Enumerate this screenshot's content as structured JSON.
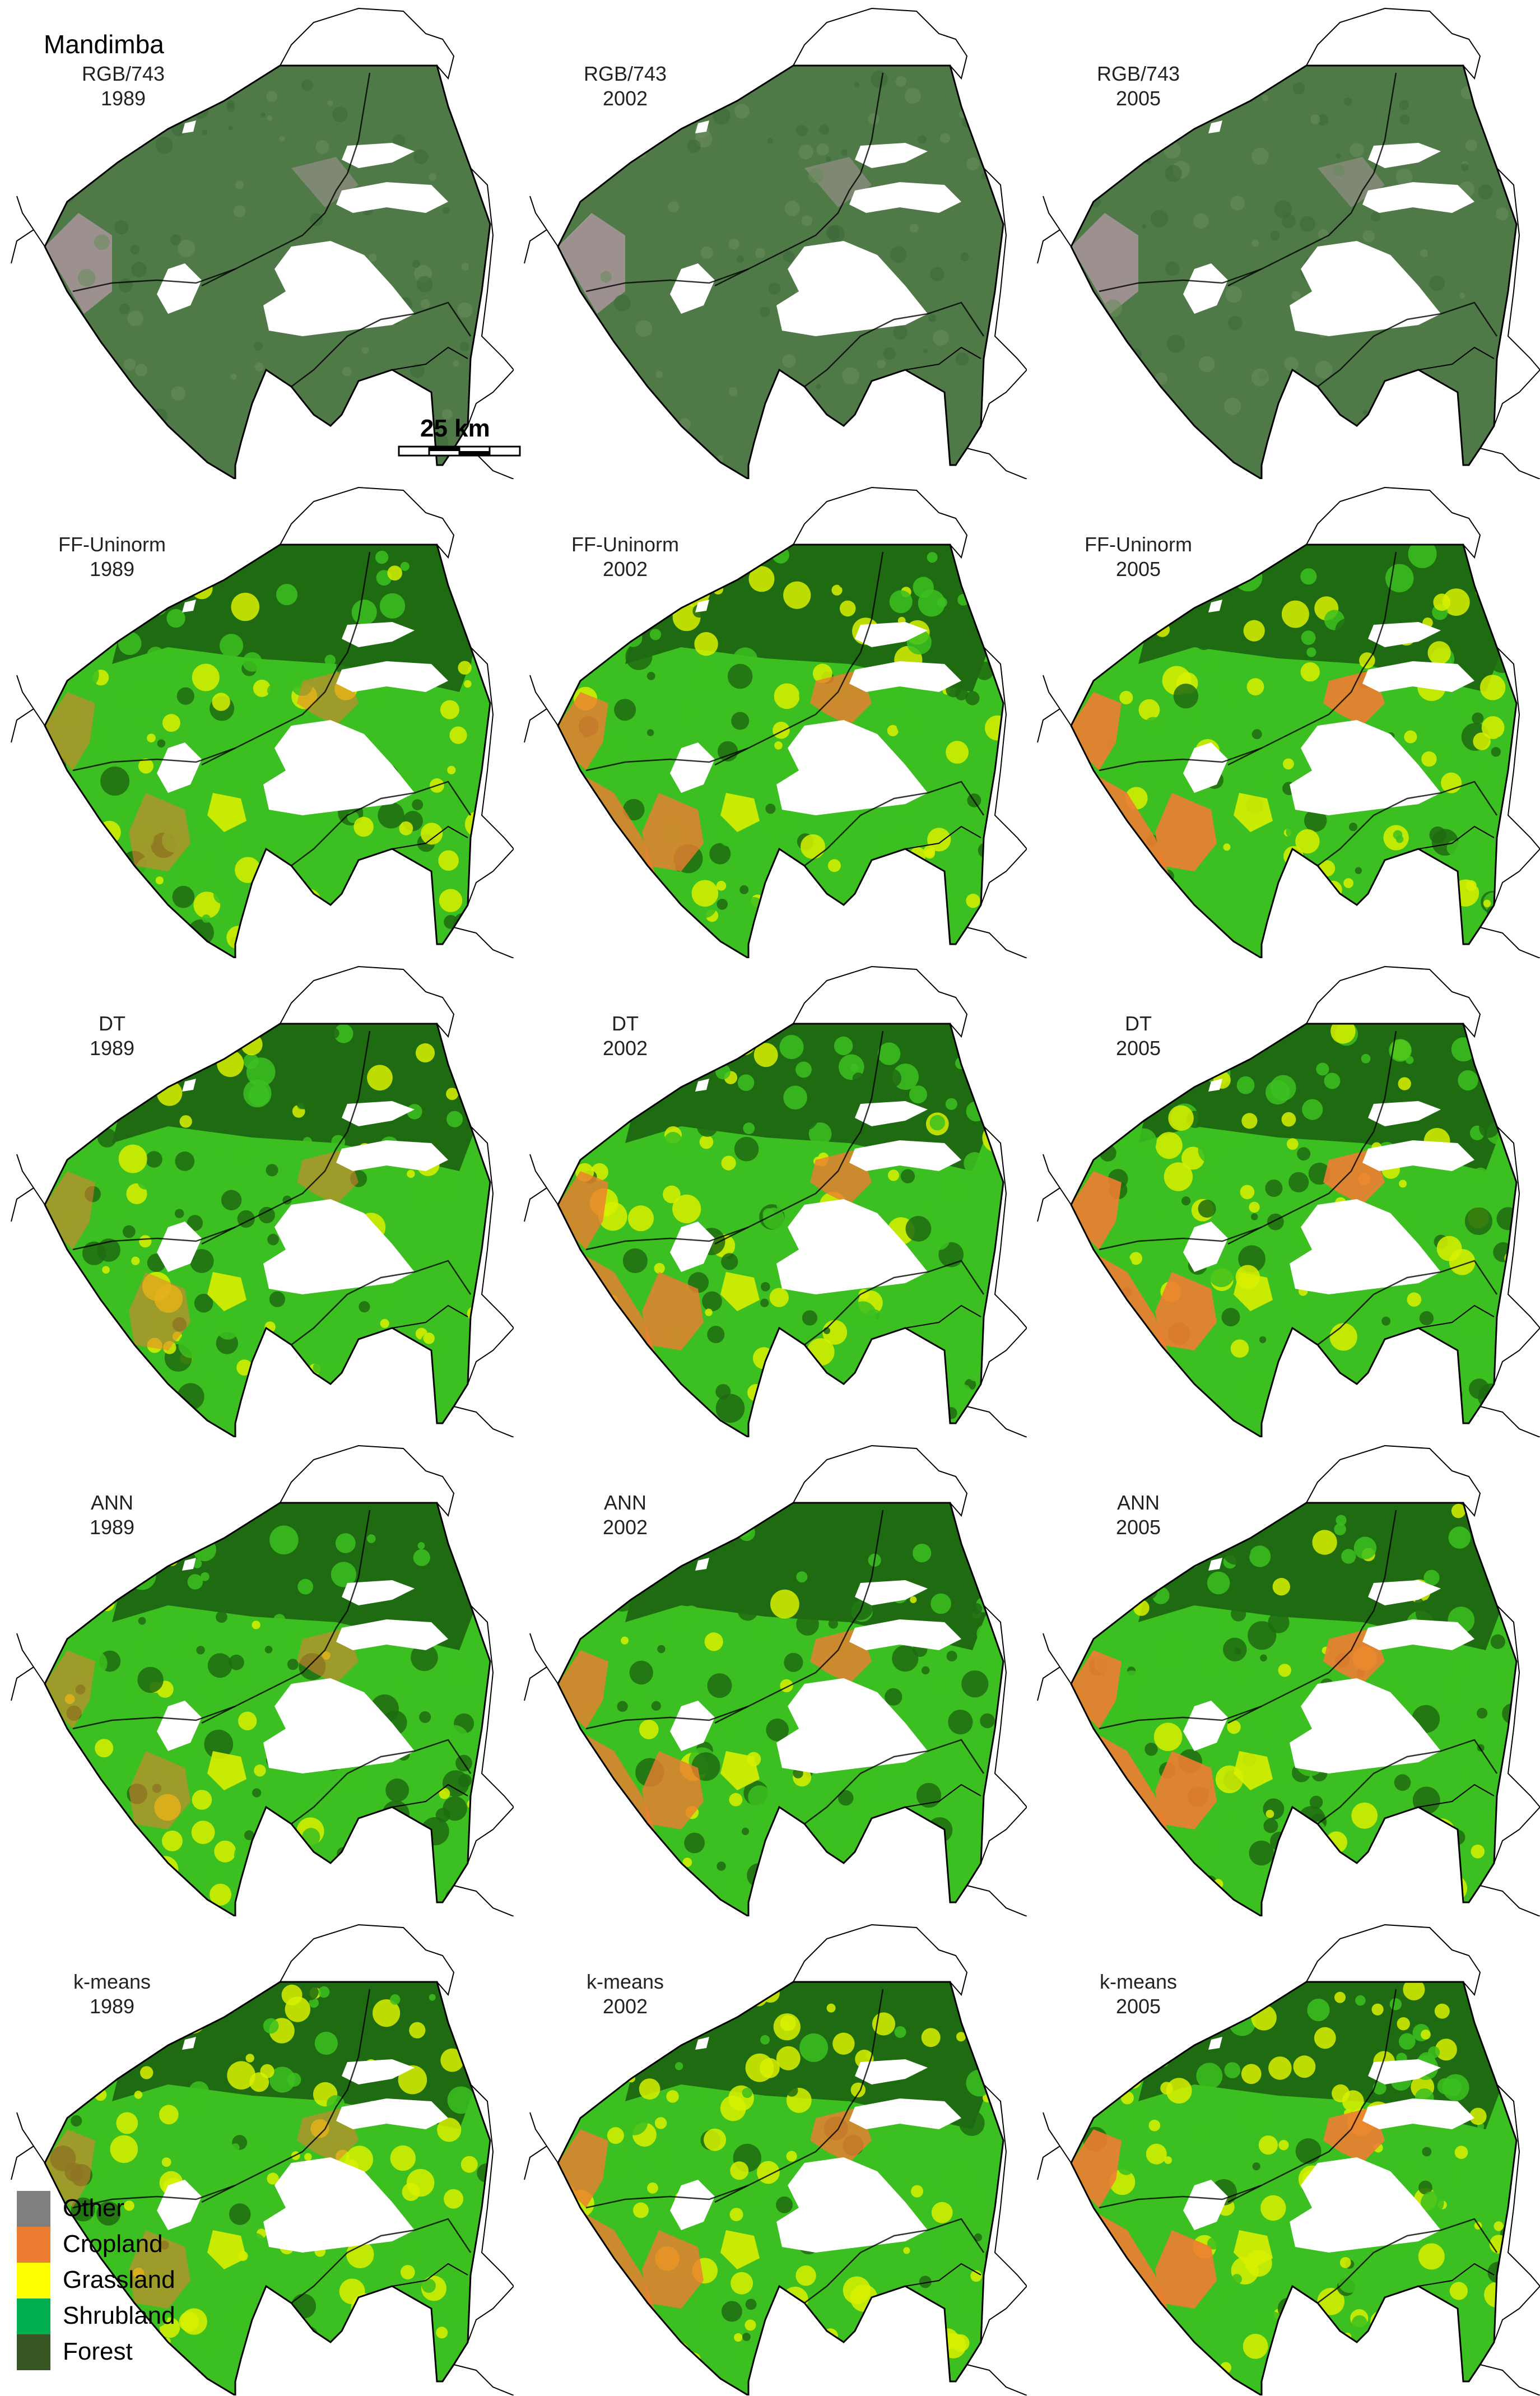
{
  "region_title": "Mandimba",
  "scale_bar": {
    "label": "25 km"
  },
  "panels": [
    {
      "method": "RGB/743",
      "year": "1989",
      "kind": "rgb"
    },
    {
      "method": "RGB/743",
      "year": "2002",
      "kind": "rgb"
    },
    {
      "method": "RGB/743",
      "year": "2005",
      "kind": "rgb"
    },
    {
      "method": "FF-Uninorm",
      "year": "1989",
      "kind": "class"
    },
    {
      "method": "FF-Uninorm",
      "year": "2002",
      "kind": "class"
    },
    {
      "method": "FF-Uninorm",
      "year": "2005",
      "kind": "class"
    },
    {
      "method": "DT",
      "year": "1989",
      "kind": "class"
    },
    {
      "method": "DT",
      "year": "2002",
      "kind": "class"
    },
    {
      "method": "DT",
      "year": "2005",
      "kind": "class"
    },
    {
      "method": "ANN",
      "year": "1989",
      "kind": "class"
    },
    {
      "method": "ANN",
      "year": "2002",
      "kind": "class"
    },
    {
      "method": "ANN",
      "year": "2005",
      "kind": "class"
    },
    {
      "method": "k-means",
      "year": "1989",
      "kind": "class"
    },
    {
      "method": "k-means",
      "year": "2002",
      "kind": "class"
    },
    {
      "method": "k-means",
      "year": "2005",
      "kind": "class"
    }
  ],
  "legend": [
    {
      "label": "Other",
      "color": "#7f7f7f"
    },
    {
      "label": "Cropland",
      "color": "#ed7d31"
    },
    {
      "label": "Grassland",
      "color": "#ffff00"
    },
    {
      "label": "Shrubland",
      "color": "#00b050"
    },
    {
      "label": "Forest",
      "color": "#375623"
    }
  ],
  "colors": {
    "rgb_base": "#4f7a48",
    "rgb_bare": "#b79aa8",
    "class_forest": "#1f6b12",
    "class_shrub": "#3cbf20",
    "class_grass": "#d8f000",
    "class_crop": "#ed7d31",
    "boundary": "#000000"
  }
}
